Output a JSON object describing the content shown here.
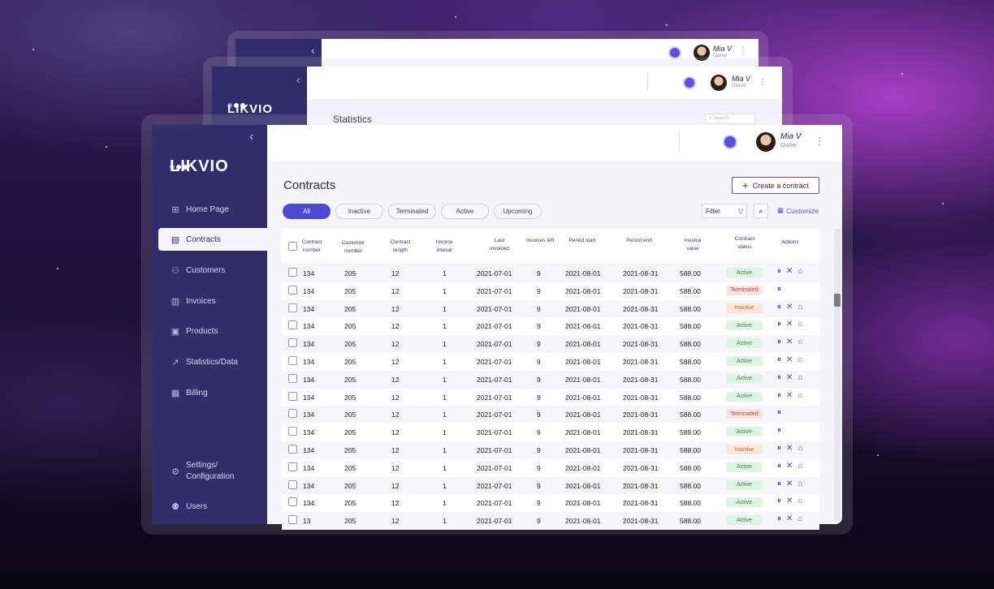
{
  "user": {
    "name": "Mia V",
    "role": "Owner"
  },
  "brand": {
    "logo": "LIKVIO",
    "accent": "#4d49d1",
    "sidebar_bg": "#302f6b"
  },
  "back_window": {
    "section_title": "Statistics",
    "search_placeholder": "Search"
  },
  "sidebar": {
    "items": [
      {
        "label": "Home Page",
        "icon": "grid-icon"
      },
      {
        "label": "Contracts",
        "icon": "document-icon",
        "active": true
      },
      {
        "label": "Customers",
        "icon": "users-icon"
      },
      {
        "label": "Invoices",
        "icon": "invoice-icon"
      },
      {
        "label": "Products",
        "icon": "box-icon"
      },
      {
        "label": "Statistics/Data",
        "icon": "chart-icon"
      },
      {
        "label": "Billing",
        "icon": "billing-icon"
      },
      {
        "label": "Settings/ Configuration",
        "icon": "gear-icon"
      },
      {
        "label": "Users",
        "icon": "user-check-icon"
      }
    ]
  },
  "page": {
    "title": "Contracts",
    "create_label": "Create a contract",
    "filter_label": "Filter",
    "customize_label": "Customize"
  },
  "tabs": [
    {
      "label": "All",
      "active": true
    },
    {
      "label": "Inactive"
    },
    {
      "label": "Terminated"
    },
    {
      "label": "Active"
    },
    {
      "label": "Upcoming"
    }
  ],
  "table": {
    "headers": [
      "Contract number",
      "Customer number",
      "Contract length",
      "Invoice inteval",
      "Last invoiced",
      "Invoices left",
      "Period start",
      "Period end",
      "Invoice value",
      "Contract status",
      "Actions"
    ],
    "rows": [
      [
        "134",
        "205",
        "12",
        "1",
        "2021-07-01",
        "9",
        "2021-08-01",
        "2021-08-31",
        "588.00",
        "Active"
      ],
      [
        "134",
        "205",
        "12",
        "1",
        "2021-07-01",
        "9",
        "2021-08-01",
        "2021-08-31",
        "588.00",
        "Terminated"
      ],
      [
        "134",
        "205",
        "12",
        "1",
        "2021-07-01",
        "9",
        "2021-08-01",
        "2021-08-31",
        "588.00",
        "Inactive"
      ],
      [
        "134",
        "205",
        "12",
        "1",
        "2021-07-01",
        "9",
        "2021-08-01",
        "2021-08-31",
        "588.00",
        "Active"
      ],
      [
        "134",
        "205",
        "12",
        "1",
        "2021-07-01",
        "9",
        "2021-08-01",
        "2021-08-31",
        "588.00",
        "Active"
      ],
      [
        "134",
        "205",
        "12",
        "1",
        "2021-07-01",
        "9",
        "2021-08-01",
        "2021-08-31",
        "588.00",
        "Active"
      ],
      [
        "134",
        "205",
        "12",
        "1",
        "2021-07-01",
        "9",
        "2021-08-01",
        "2021-08-31",
        "588.00",
        "Active"
      ],
      [
        "134",
        "205",
        "12",
        "1",
        "2021-07-01",
        "9",
        "2021-08-01",
        "2021-08-31",
        "588.00",
        "Active"
      ],
      [
        "134",
        "205",
        "12",
        "1",
        "2021-07-01",
        "9",
        "2021-08-01",
        "2021-08-31",
        "588.00",
        "Terminated"
      ],
      [
        "134",
        "205",
        "12",
        "1",
        "2021-07-01",
        "9",
        "2021-08-01",
        "2021-08-31",
        "588.00",
        "Active"
      ],
      [
        "134",
        "205",
        "12",
        "1",
        "2021-07-01",
        "9",
        "2021-08-01",
        "2021-08-31",
        "588.00",
        "Inactive"
      ],
      [
        "134",
        "205",
        "12",
        "1",
        "2021-07-01",
        "9",
        "2021-08-01",
        "2021-08-31",
        "588.00",
        "Active"
      ],
      [
        "134",
        "205",
        "12",
        "1",
        "2021-07-01",
        "9",
        "2021-08-01",
        "2021-08-31",
        "588.00",
        "Active"
      ],
      [
        "134",
        "205",
        "12",
        "1",
        "2021-07-01",
        "9",
        "2021-08-01",
        "2021-08-31",
        "588.00",
        "Active"
      ],
      [
        "13",
        "205",
        "12",
        "1",
        "2021-07-01",
        "9",
        "2021-08-01",
        "2021-08-31",
        "588.00",
        "Active"
      ]
    ]
  }
}
